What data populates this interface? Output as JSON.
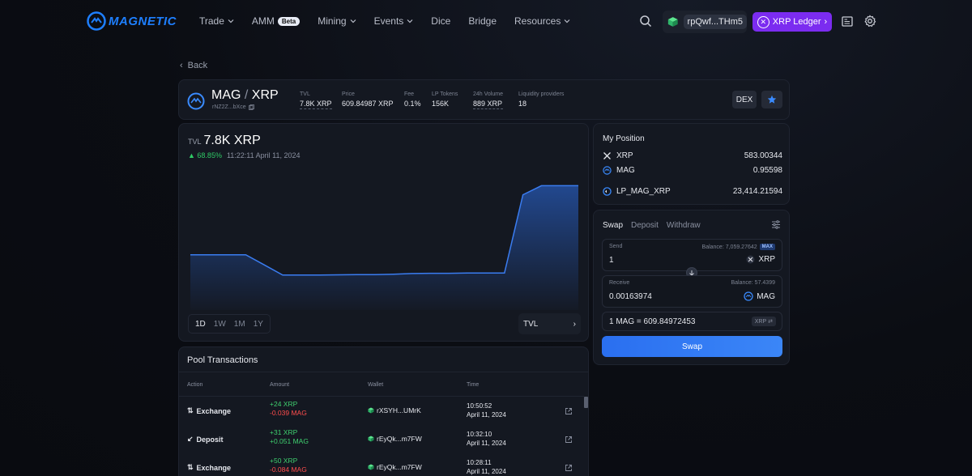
{
  "nav": {
    "logo": "MAGNETIC",
    "menu": [
      {
        "label": "Trade",
        "dropdown": true
      },
      {
        "label": "AMM",
        "badge": "Beta"
      },
      {
        "label": "Mining",
        "dropdown": true
      },
      {
        "label": "Events",
        "dropdown": true
      },
      {
        "label": "Dice"
      },
      {
        "label": "Bridge"
      },
      {
        "label": "Resources",
        "dropdown": true
      }
    ],
    "wallet_address": "rpQwf...THm5",
    "network_button": "XRP Ledger"
  },
  "back_label": "Back",
  "pair": {
    "base": "MAG",
    "quote": "XRP",
    "address": "rNZ2Z...bXce",
    "stats": [
      {
        "label": "TVL",
        "value": "7.8K XRP"
      },
      {
        "label": "Price",
        "value": "609.84987 XRP"
      },
      {
        "label": "Fee",
        "value": "0.1%"
      },
      {
        "label": "LP Tokens",
        "value": "156K"
      },
      {
        "label": "24h Volume",
        "value": "889 XRP"
      },
      {
        "label": "Liquidity providers",
        "value": "18"
      }
    ],
    "dex_label": "DEX"
  },
  "chart": {
    "tvl_label": "TVL",
    "tvl_value": "7.8K XRP",
    "change": "68.85%",
    "timestamp": "11:22:11 April 11, 2024",
    "ranges": [
      "1D",
      "1W",
      "1M",
      "1Y"
    ],
    "active_range": "1D",
    "metric": "TVL"
  },
  "chart_data": {
    "type": "area",
    "series": [
      {
        "values": [
          4.75,
          4.75,
          4.75,
          4.75,
          4.3,
          3.85,
          3.85,
          3.85,
          3.86,
          3.87,
          3.87,
          3.89,
          3.92,
          3.93,
          3.93,
          3.94,
          3.94,
          3.94,
          7.4,
          7.8,
          7.8,
          7.8
        ]
      }
    ],
    "color": "#2d6fe8"
  },
  "position": {
    "title": "My Position",
    "rows": [
      {
        "token": "XRP",
        "amount": "583.00344"
      },
      {
        "token": "MAG",
        "amount": "0.95598"
      },
      {
        "token": "LP_MAG_XRP",
        "amount": "23,414.21594"
      }
    ]
  },
  "swap": {
    "tabs": [
      "Swap",
      "Deposit",
      "Withdraw"
    ],
    "send": {
      "label": "Send",
      "balance": "Balance: 7,059.27642",
      "max": "MAX",
      "amount": "1",
      "token": "XRP"
    },
    "receive": {
      "label": "Receive",
      "balance": "Balance: 57.4399",
      "amount": "0.00163974",
      "token": "MAG"
    },
    "rate": "1 MAG = 609.84972453",
    "rate_toggle": "XRP",
    "button": "Swap"
  },
  "transactions": {
    "title": "Pool Transactions",
    "headers": [
      "Action",
      "Amount",
      "Wallet",
      "Time"
    ],
    "rows": [
      {
        "action": "Exchange",
        "amount_pos": "+24 XRP",
        "amount_2": "-0.039 MAG",
        "wallet": "rXSYH...UMrK",
        "time": "10:50:52",
        "date": "April 11, 2024"
      },
      {
        "action": "Deposit",
        "amount_pos": "+31 XRP",
        "amount_2": "+0.051 MAG",
        "wallet": "rEyQk...m7FW",
        "time": "10:32:10",
        "date": "April 11, 2024"
      },
      {
        "action": "Exchange",
        "amount_pos": "+50 XRP",
        "amount_2": "-0.084 MAG",
        "wallet": "rEyQk...m7FW",
        "time": "10:28:11",
        "date": "April 11, 2024"
      }
    ]
  },
  "colors": {
    "accent": "#2d6fe8",
    "purple": "#7b2cf0",
    "positive": "#2fcb66",
    "negative": "#ff4d4d"
  }
}
